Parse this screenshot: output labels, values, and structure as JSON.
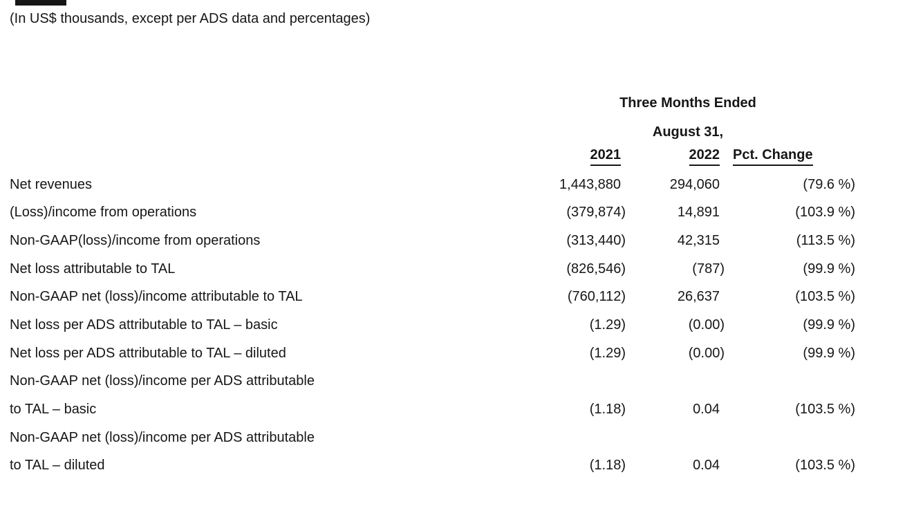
{
  "colors": {
    "text": "#161616",
    "background": "#ffffff"
  },
  "note": "(In US$ thousands, except per ADS data and percentages)",
  "table": {
    "period_header": {
      "line1": "Three Months Ended",
      "line2": "August 31,"
    },
    "columns": {
      "y2021": "2021",
      "y2022": "2022",
      "pct": "Pct. Change"
    },
    "rows": [
      {
        "label": "Net revenues",
        "y2021": "1,443,880",
        "y2022": "294,060",
        "pct": "(79.6 %)"
      },
      {
        "label": "(Loss)/income from operations",
        "y2021": "(379,874)",
        "y2022": "14,891",
        "pct": "(103.9 %)"
      },
      {
        "label": "Non-GAAP(loss)/income from operations",
        "y2021": "(313,440)",
        "y2022": "42,315",
        "pct": "(113.5 %)"
      },
      {
        "label": "Net loss attributable to TAL",
        "y2021": "(826,546)",
        "y2022": "(787)",
        "pct": "(99.9 %)"
      },
      {
        "label": "Non-GAAP net (loss)/income attributable to TAL",
        "y2021": "(760,112)",
        "y2022": "26,637",
        "pct": "(103.5 %)"
      },
      {
        "label": "Net loss per ADS attributable to TAL – basic",
        "y2021": "(1.29)",
        "y2022": "(0.00)",
        "pct": "(99.9 %)"
      },
      {
        "label": "Net loss per ADS attributable to TAL – diluted",
        "y2021": "(1.29)",
        "y2022": "(0.00)",
        "pct": "(99.9 %)"
      },
      {
        "label": "Non-GAAP net (loss)/income per ADS attributable",
        "y2021": "",
        "y2022": "",
        "pct": ""
      },
      {
        "label": "to TAL – basic",
        "y2021": "(1.18)",
        "y2022": "0.04",
        "pct": "(103.5 %)"
      },
      {
        "label": "Non-GAAP net (loss)/income per ADS attributable",
        "y2021": "",
        "y2022": "",
        "pct": ""
      },
      {
        "label": "to TAL – diluted",
        "y2021": "(1.18)",
        "y2022": "0.04",
        "pct": "(103.5 %)"
      }
    ]
  }
}
